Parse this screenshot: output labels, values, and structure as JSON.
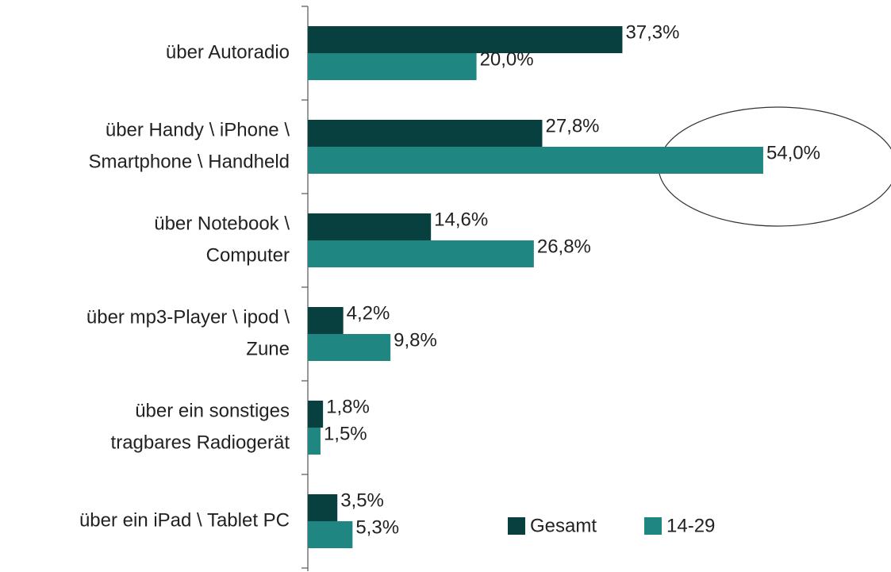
{
  "chart_data": {
    "type": "bar",
    "orientation": "horizontal",
    "categories": [
      [
        "über Autoradio"
      ],
      [
        "über Handy \\ iPhone \\",
        "Smartphone \\ Handheld"
      ],
      [
        "über Notebook \\",
        "Computer"
      ],
      [
        "über mp3-Player \\ ipod \\",
        "Zune"
      ],
      [
        "über ein sonstiges",
        "tragbares Radiogerät"
      ],
      [
        "über ein iPad \\ Tablet PC"
      ]
    ],
    "series": [
      {
        "name": "Gesamt",
        "color": "#07403f",
        "values": [
          37.3,
          27.8,
          14.6,
          4.2,
          1.8,
          3.5
        ],
        "value_labels": [
          "37,3%",
          "27,8%",
          "14,6%",
          "4,2%",
          "1,8%",
          "3,5%"
        ]
      },
      {
        "name": "14-29",
        "color": "#1f8681",
        "values": [
          20.0,
          54.0,
          26.8,
          9.8,
          1.5,
          5.3
        ],
        "value_labels": [
          "20,0%",
          "54,0%",
          "26,8%",
          "9,8%",
          "1,5%",
          "5,3%"
        ]
      }
    ],
    "xlim": [
      0,
      70
    ],
    "legend": "lower right"
  }
}
